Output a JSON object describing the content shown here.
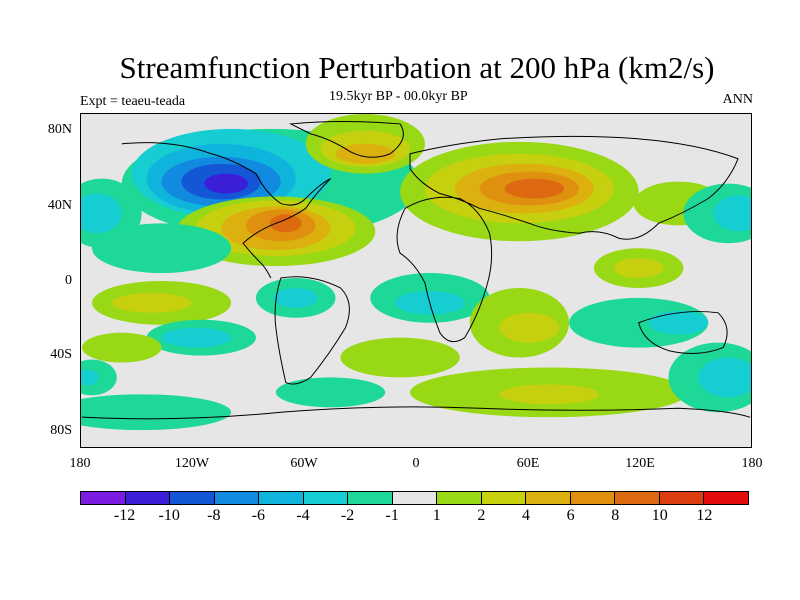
{
  "title": "Streamfunction Perturbation at 200 hPa (km2/s)",
  "subtitle": "19.5kyr BP - 00.0kyr BP",
  "left_label": "Expt = teaeu-teada",
  "right_label": "ANN",
  "y_ticks": [
    "80N",
    "40N",
    "0",
    "40S",
    "80S"
  ],
  "x_ticks": [
    "180",
    "120W",
    "60W",
    "0",
    "60E",
    "120E",
    "180"
  ],
  "colorbar": {
    "colors": [
      "#7a1de0",
      "#3b1ed8",
      "#1457d6",
      "#118ae0",
      "#0fb4dc",
      "#16cdd1",
      "#1ed897",
      "#e6e6e6",
      "#99d815",
      "#c6d00f",
      "#dcb00f",
      "#e0900f",
      "#dd6a10",
      "#dc3e12",
      "#e40d0b"
    ],
    "labels": [
      "-12",
      "-10",
      "-8",
      "-6",
      "-4",
      "-2",
      "-1",
      "1",
      "2",
      "4",
      "6",
      "8",
      "10",
      "12"
    ]
  },
  "map_data": {
    "field": "200 hPa streamfunction perturbation",
    "projection": "cylindrical equidistant",
    "lon_range": [
      -180,
      180
    ],
    "lat_range": [
      -90,
      90
    ]
  }
}
